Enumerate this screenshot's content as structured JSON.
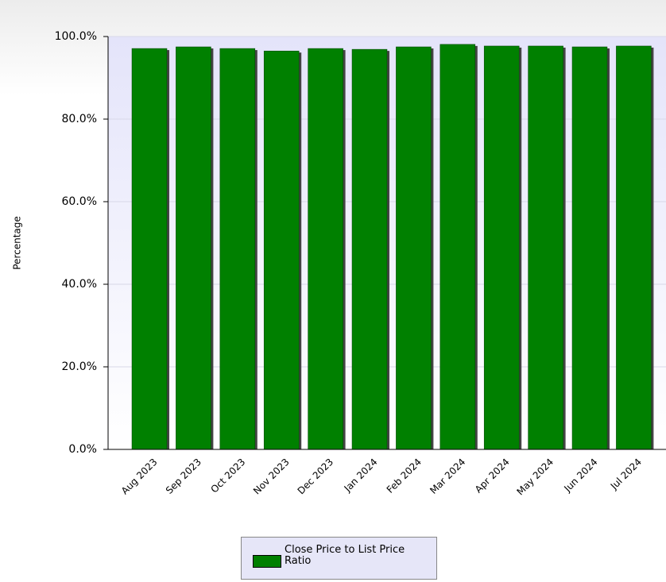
{
  "chart_data": {
    "type": "bar",
    "y_label": "Percentage",
    "categories": [
      "Aug 2023",
      "Sep 2023",
      "Oct 2023",
      "Nov 2023",
      "Dec 2023",
      "Jan 2024",
      "Feb 2024",
      "Mar 2024",
      "Apr 2024",
      "May 2024",
      "Jun 2024",
      "Jul 2024"
    ],
    "series": [
      {
        "name": "Close Price to List Price Ratio",
        "color": "#008000",
        "values": [
          97.1,
          97.5,
          97.1,
          96.5,
          97.1,
          96.9,
          97.5,
          98.1,
          97.7,
          97.7,
          97.5,
          97.7
        ]
      }
    ],
    "ylim": [
      0,
      100
    ],
    "yticks": [
      {
        "value": 0,
        "label": "0.0%"
      },
      {
        "value": 20,
        "label": "20.0%"
      },
      {
        "value": 40,
        "label": "40.0%"
      },
      {
        "value": 60,
        "label": "60.0%"
      },
      {
        "value": 80,
        "label": "80.0%"
      },
      {
        "value": 100,
        "label": "100.0%"
      }
    ],
    "grid": true,
    "legend": "bottom"
  }
}
